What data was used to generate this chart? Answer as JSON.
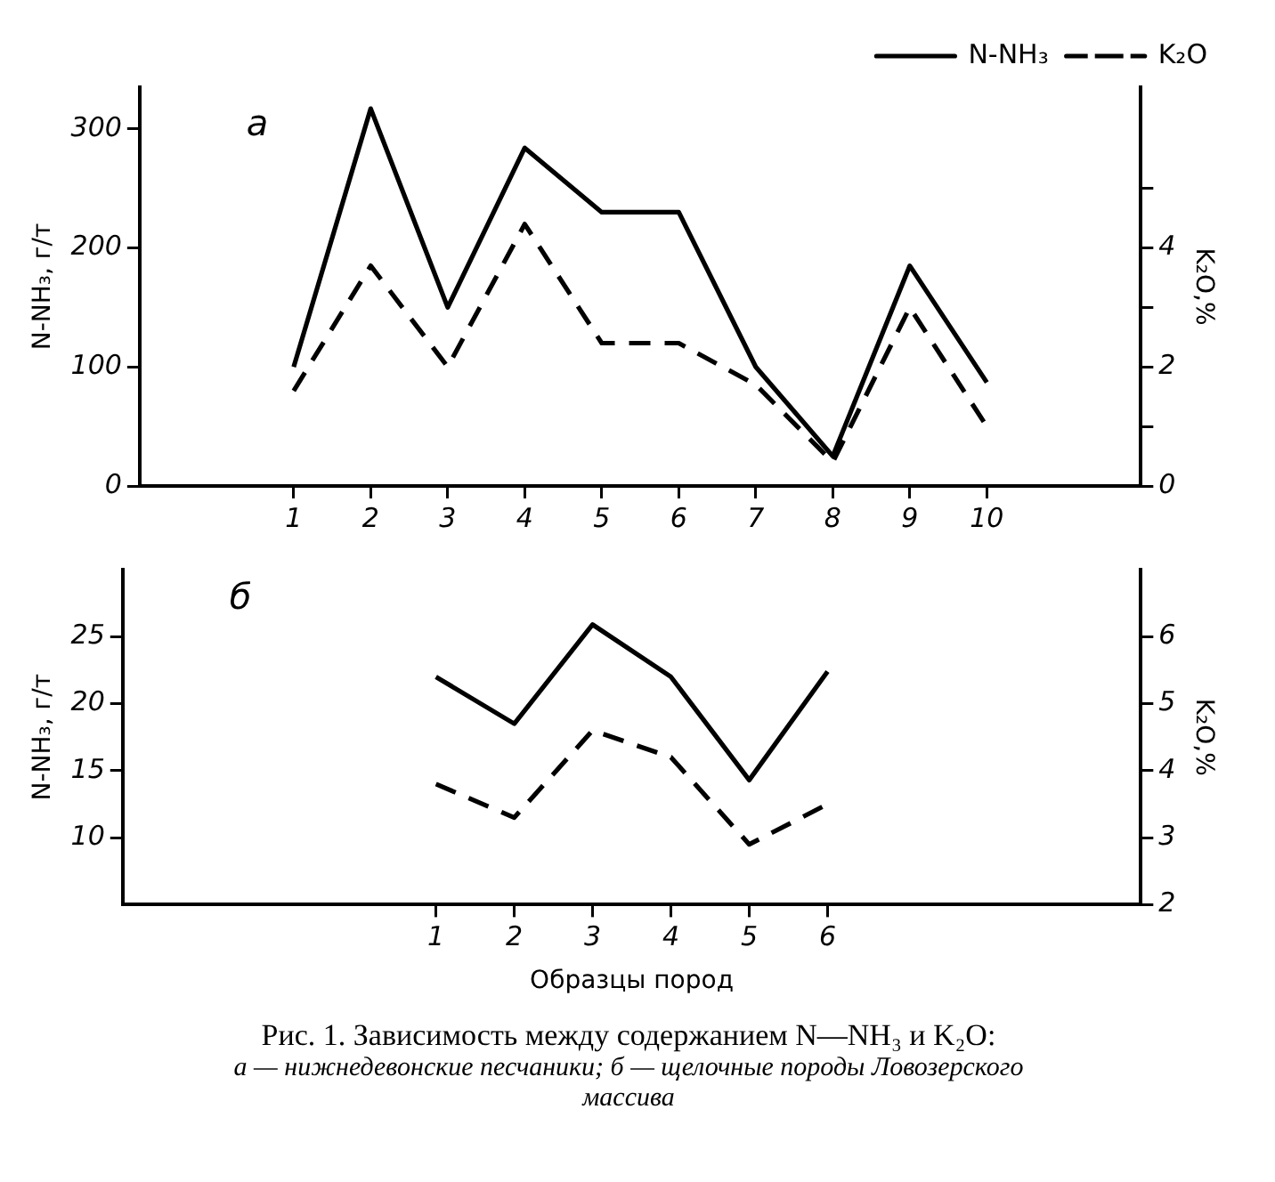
{
  "chart_data": [
    {
      "type": "line",
      "title": "Рис. 1. Зависимость между содержанием N—NH₃ и K₂O:",
      "subtitle": "а — нижнедевонские песчаники; б — щелочные породы Ловозерского массива",
      "annotations": [
        "а"
      ],
      "ylabel": "N-NH₃, г/т",
      "y2label": "K₂O,%",
      "x": [
        1,
        2,
        3,
        4,
        5,
        6,
        7,
        8,
        9,
        10
      ],
      "xlim": [
        -1,
        12
      ],
      "xticks": [
        1,
        2,
        3,
        4,
        5,
        6,
        7,
        8,
        9,
        10
      ],
      "ylim": [
        0,
        335
      ],
      "yticks": [
        0,
        100,
        200,
        300
      ],
      "y2lim": [
        0,
        6.7
      ],
      "y2ticks": [
        0,
        {
          "value": 1,
          "label": null
        },
        2,
        {
          "value": 3,
          "label": null
        },
        4,
        {
          "value": 5,
          "label": null
        }
      ],
      "grid": false,
      "legend": "top right",
      "marker": "none",
      "series": [
        {
          "name": "N-NH₃",
          "color": "#000000",
          "line_style": "solid",
          "values": [
            100,
            317,
            150,
            284,
            230,
            230,
            100,
            25,
            185,
            87
          ]
        },
        {
          "name": "K₂O",
          "color": "#000000",
          "line_style": "dashed",
          "axis": "y2",
          "values": [
            1.6,
            3.7,
            2.0,
            4.4,
            2.4,
            2.4,
            1.7,
            0.4,
            3.0,
            1.0
          ]
        }
      ]
    },
    {
      "type": "line",
      "annotations": [
        "б"
      ],
      "xlabel": "Образцы пород",
      "ylabel": "N-NH₃, г/т",
      "y2label": "K₂O,%",
      "x": [
        1,
        2,
        3,
        4,
        5,
        6
      ],
      "xlim": [
        -3,
        10
      ],
      "xticks": [
        1,
        2,
        3,
        4,
        5,
        6
      ],
      "ylim": [
        5,
        30
      ],
      "yticks": [
        10,
        15,
        20,
        25
      ],
      "y2lim": [
        2,
        7
      ],
      "y2ticks": [
        2,
        3,
        4,
        5,
        6
      ],
      "grid": false,
      "legend": false,
      "marker": "none",
      "series": [
        {
          "color": "#000000",
          "line_style": "solid",
          "values": [
            22.0,
            18.5,
            25.9,
            22.0,
            14.3,
            22.4
          ]
        },
        {
          "color": "#000000",
          "line_style": "dashed",
          "axis": "y2",
          "values": [
            3.8,
            3.3,
            4.6,
            4.2,
            2.9,
            3.5
          ]
        }
      ]
    }
  ]
}
